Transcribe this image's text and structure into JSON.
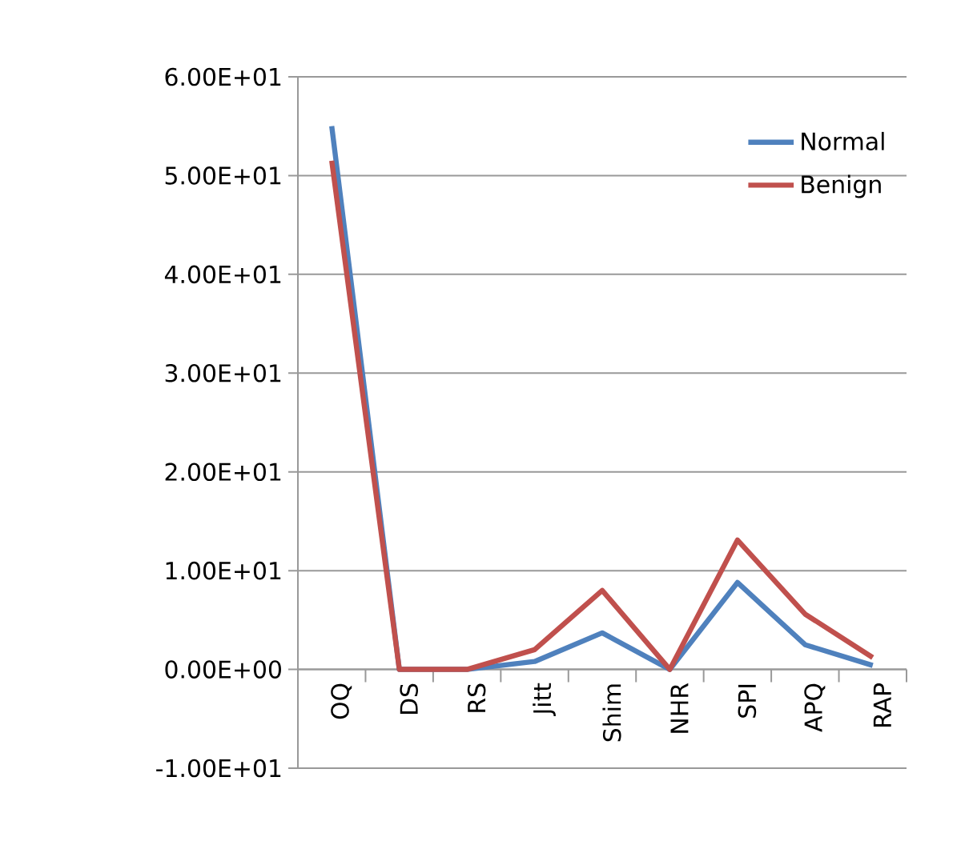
{
  "chart_data": {
    "type": "line",
    "categories": [
      "OQ",
      "DS",
      "RS",
      "Jitt",
      "Shim",
      "NHR",
      "SPI",
      "APQ",
      "RAP"
    ],
    "series": [
      {
        "name": "Normal",
        "color": "#4f81bd",
        "values": [
          55.0,
          0,
          0,
          0.8,
          3.7,
          0,
          8.8,
          2.5,
          0.4
        ]
      },
      {
        "name": "Benign",
        "color": "#c0504d",
        "values": [
          51.5,
          0,
          0,
          2.0,
          8.0,
          0,
          13.1,
          5.6,
          1.2
        ]
      }
    ],
    "ylim": [
      -10,
      60
    ],
    "yticks": [
      {
        "value": -10,
        "label": "-1.00E+01"
      },
      {
        "value": 0,
        "label": "0.00E+00"
      },
      {
        "value": 10,
        "label": "1.00E+01"
      },
      {
        "value": 20,
        "label": "2.00E+01"
      },
      {
        "value": 30,
        "label": "3.00E+01"
      },
      {
        "value": 40,
        "label": "4.00E+01"
      },
      {
        "value": 50,
        "label": "5.00E+01"
      },
      {
        "value": 60,
        "label": "6.00E+01"
      }
    ],
    "grid": "y",
    "legend": "top right",
    "marker": "none",
    "line_style": "solid"
  }
}
